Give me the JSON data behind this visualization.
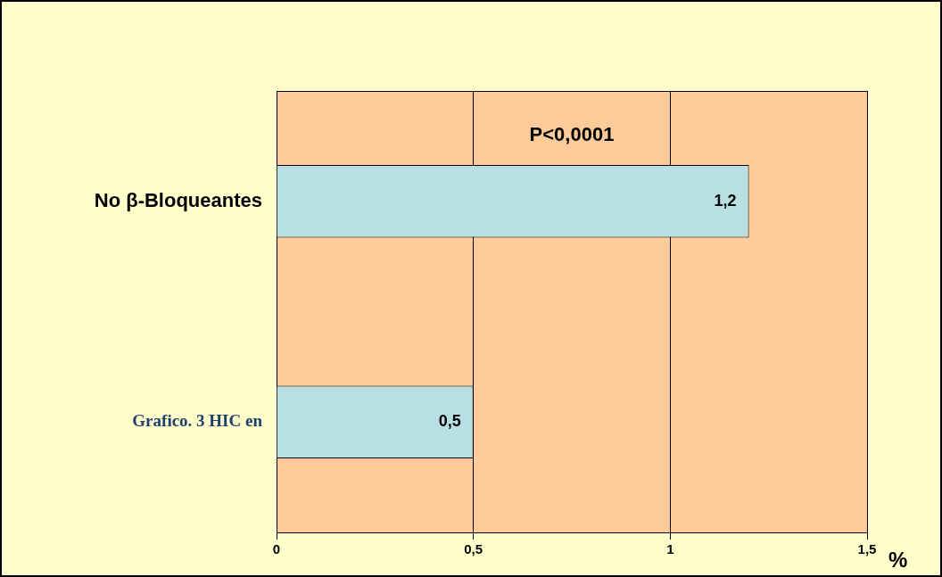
{
  "chart_data": {
    "type": "bar",
    "orientation": "horizontal",
    "categories": [
      "No β-Bloqueantes",
      "Grafico. 3 HIC en"
    ],
    "values": [
      1.2,
      0.5
    ],
    "color": "#b8dfe3",
    "value_labels": [
      "1,2",
      "0,5"
    ],
    "xlim": [
      0,
      1.5
    ],
    "xticks": [
      {
        "value": 0,
        "label": "0"
      },
      {
        "value": 0.5,
        "label": "0,5"
      },
      {
        "value": 1,
        "label": "1"
      },
      {
        "value": 1.5,
        "label": "1,5"
      }
    ],
    "xlabel": "%",
    "annotations": [
      "P<0,0001"
    ],
    "grid": "x",
    "legend": false
  }
}
